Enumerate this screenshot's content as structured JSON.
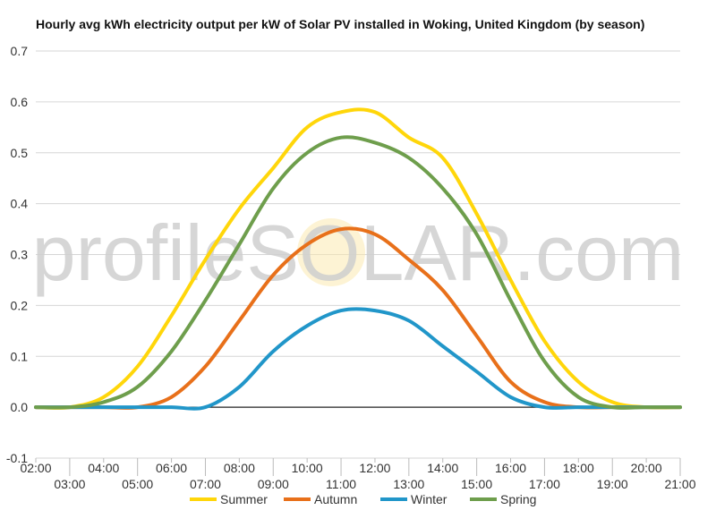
{
  "chart_data": {
    "type": "line",
    "title": "Hourly avg kWh electricity output per kW of Solar PV installed in Woking, United Kingdom (by season)",
    "xlabel": "",
    "ylabel": "",
    "watermark": "profileSOLAR.com",
    "x": [
      "02:00",
      "03:00",
      "04:00",
      "05:00",
      "06:00",
      "07:00",
      "08:00",
      "09:00",
      "10:00",
      "11:00",
      "12:00",
      "13:00",
      "14:00",
      "15:00",
      "16:00",
      "17:00",
      "18:00",
      "19:00",
      "20:00",
      "21:00"
    ],
    "x_numeric": [
      2,
      3,
      4,
      5,
      6,
      7,
      8,
      9,
      10,
      11,
      12,
      13,
      14,
      15,
      16,
      17,
      18,
      19,
      20,
      21
    ],
    "xlim": [
      2,
      21
    ],
    "ylim": [
      -0.1,
      0.7
    ],
    "yticks": [
      "0.7",
      "0.6",
      "0.5",
      "0.4",
      "0.3",
      "0.2",
      "0.1",
      "0.0",
      "-0.1"
    ],
    "ytick_values": [
      0.7,
      0.6,
      0.5,
      0.4,
      0.3,
      0.2,
      0.1,
      0.0,
      -0.1
    ],
    "grid": true,
    "legend_position": "bottom",
    "series": [
      {
        "name": "Summer",
        "color": "#FFD60A",
        "values": [
          0.0,
          0.0,
          0.02,
          0.08,
          0.18,
          0.29,
          0.39,
          0.47,
          0.55,
          0.58,
          0.58,
          0.53,
          0.49,
          0.38,
          0.25,
          0.13,
          0.05,
          0.01,
          0.0,
          0.0
        ]
      },
      {
        "name": "Autumn",
        "color": "#E8701A",
        "values": [
          0.0,
          0.0,
          0.0,
          0.0,
          0.02,
          0.08,
          0.17,
          0.26,
          0.32,
          0.35,
          0.34,
          0.29,
          0.23,
          0.14,
          0.05,
          0.01,
          0.0,
          0.0,
          0.0,
          0.0
        ]
      },
      {
        "name": "Winter",
        "color": "#2196C9",
        "values": [
          0.0,
          0.0,
          0.0,
          0.0,
          0.0,
          0.0,
          0.04,
          0.11,
          0.16,
          0.19,
          0.19,
          0.17,
          0.12,
          0.07,
          0.02,
          0.0,
          0.0,
          0.0,
          0.0,
          0.0
        ]
      },
      {
        "name": "Spring",
        "color": "#6E9E4C",
        "values": [
          0.0,
          0.0,
          0.01,
          0.04,
          0.11,
          0.21,
          0.32,
          0.43,
          0.5,
          0.53,
          0.52,
          0.49,
          0.43,
          0.34,
          0.21,
          0.09,
          0.02,
          0.0,
          0.0,
          0.0
        ]
      }
    ]
  }
}
